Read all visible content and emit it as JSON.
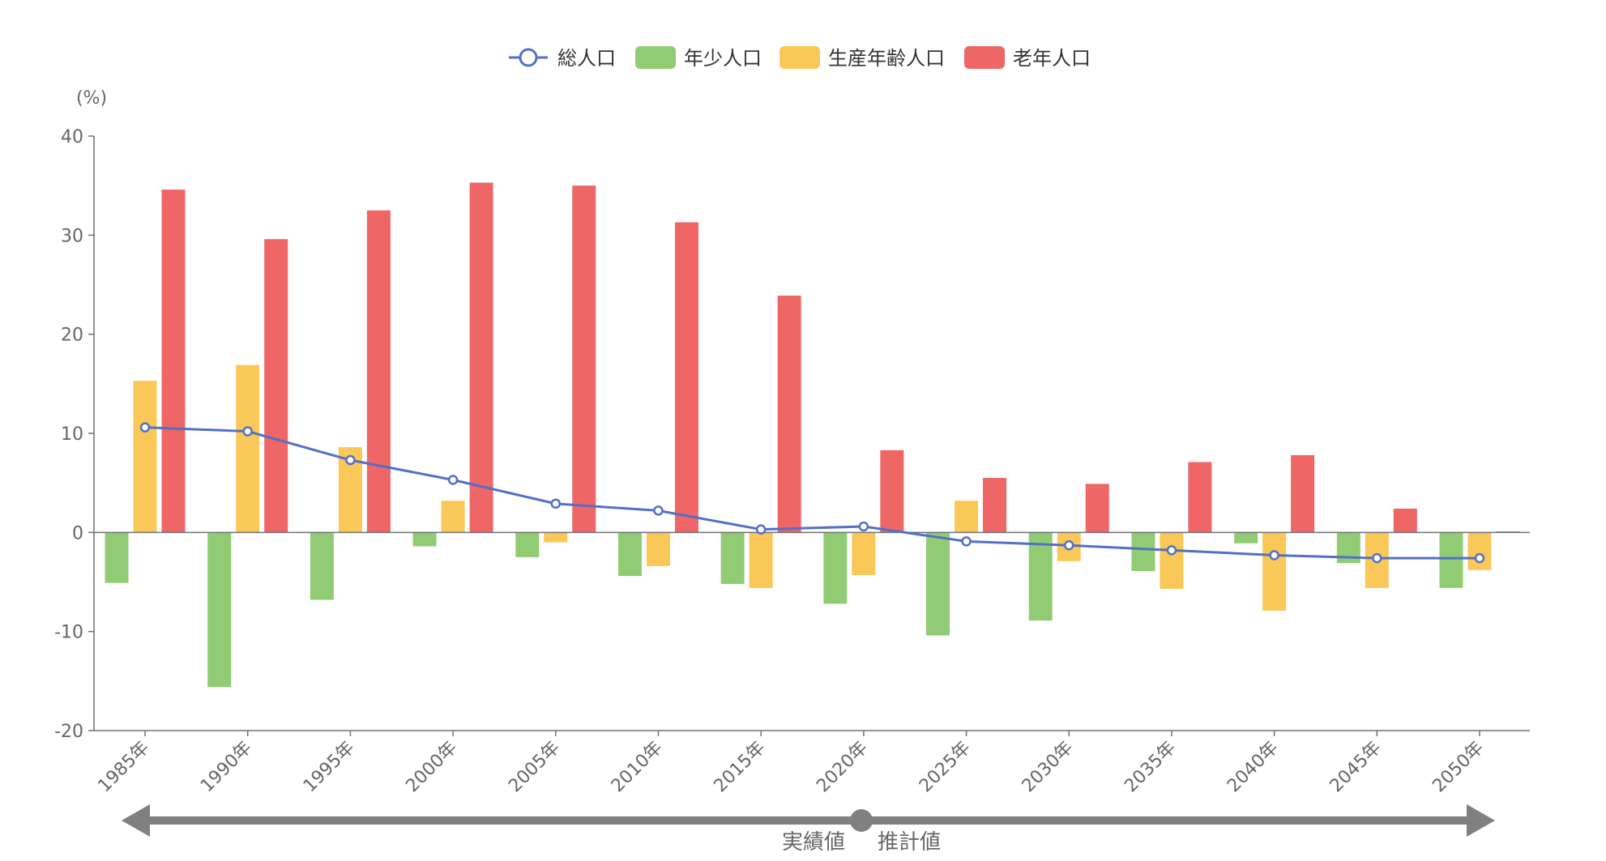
{
  "chart_data": {
    "type": "bar",
    "title": "",
    "ylabel": "(%)",
    "xlabel": "",
    "ylim": [
      -20,
      40
    ],
    "yticks": [
      40,
      30,
      20,
      10,
      0,
      -10,
      -20
    ],
    "categories": [
      "1985年",
      "1990年",
      "1995年",
      "2000年",
      "2005年",
      "2010年",
      "2015年",
      "2020年",
      "2025年",
      "2030年",
      "2035年",
      "2040年",
      "2045年",
      "2050年"
    ],
    "series": [
      {
        "name": "年少人口",
        "kind": "bar",
        "color": "#91cc75",
        "values": [
          -5.1,
          -15.6,
          -6.8,
          -1.4,
          -2.5,
          -4.4,
          -5.2,
          -7.2,
          -10.4,
          -8.9,
          -3.9,
          -1.1,
          -3.1,
          -5.6
        ]
      },
      {
        "name": "生産年齢人口",
        "kind": "bar",
        "color": "#fac858",
        "values": [
          15.3,
          16.9,
          8.6,
          3.2,
          -1.0,
          -3.4,
          -5.6,
          -4.3,
          3.2,
          -2.9,
          -5.7,
          -7.9,
          -5.6,
          -3.8
        ]
      },
      {
        "name": "老年人口",
        "kind": "bar",
        "color": "#ee6666",
        "values": [
          34.6,
          29.6,
          32.5,
          35.3,
          35.0,
          31.3,
          23.9,
          8.3,
          5.5,
          4.9,
          7.1,
          7.8,
          2.4,
          0.1
        ]
      },
      {
        "name": "総人口",
        "kind": "line",
        "color": "#5470c6",
        "values": [
          10.6,
          10.2,
          7.3,
          5.3,
          2.9,
          2.2,
          0.3,
          0.6,
          -0.9,
          -1.3,
          -1.8,
          -2.3,
          -2.6,
          -2.6
        ]
      }
    ],
    "legend_order": [
      "総人口",
      "年少人口",
      "生産年齢人口",
      "老年人口"
    ],
    "legend_position": "top-center",
    "annotation": {
      "left_label": "実績値",
      "right_label": "推計値",
      "arrow_color": "#808080"
    }
  }
}
